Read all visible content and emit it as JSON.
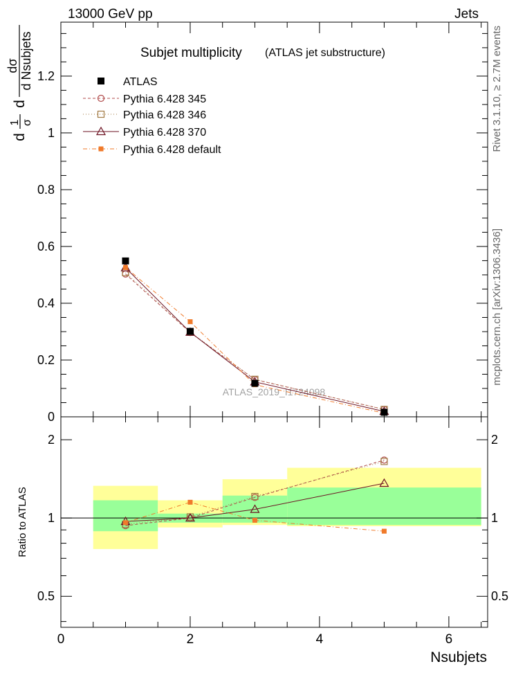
{
  "header": {
    "energy_label": "13000 GeV pp",
    "process_label": "Jets",
    "title": "Subjet multiplicity",
    "subtitle": "(ATLAS jet substructure)",
    "side_label_top": "Rivet 3.1.10, ≥ 2.7M events",
    "side_label_bottom": "mcplots.cern.ch [arXiv:1306.3436]",
    "watermark": "ATLAS_2019_I1724098"
  },
  "axes": {
    "ylabel_parts": {
      "frac1_num": "1",
      "frac1_den": "σ",
      "frac2_num": "dσ",
      "frac2_den": "d Nsubjets",
      "prefix": "d",
      "mid": "d"
    },
    "ratio_ylabel": "Ratio to ATLAS",
    "xlabel": "Nsubjets",
    "main_yticks": [
      "0",
      "0.2",
      "0.4",
      "0.6",
      "0.8",
      "1",
      "1.2"
    ],
    "ratio_yticks": [
      "0.5",
      "1",
      "2"
    ],
    "xticks": [
      "0",
      "2",
      "4",
      "6"
    ]
  },
  "legend": {
    "items": [
      {
        "label": "ATLAS"
      },
      {
        "label": "Pythia 6.428 345"
      },
      {
        "label": "Pythia 6.428 346"
      },
      {
        "label": "Pythia 6.428 370"
      },
      {
        "label": "Pythia 6.428 default"
      }
    ]
  },
  "chart_data": {
    "type": "line",
    "title": "Subjet multiplicity (ATLAS jet substructure)",
    "xlabel": "Nsubjets",
    "ylabel": "1/σ dσ/d Nsubjets",
    "xlim": [
      0,
      6.6
    ],
    "ylim": [
      0,
      1.39
    ],
    "x": [
      1,
      2,
      3,
      5
    ],
    "reference": {
      "name": "ATLAS",
      "values": [
        0.549,
        0.301,
        0.118,
        0.016
      ],
      "bins": [
        [
          0.5,
          1.5
        ],
        [
          1.5,
          2.5
        ],
        [
          2.5,
          3.5
        ],
        [
          3.5,
          6.5
        ]
      ],
      "ratio_band_inner": [
        [
          0.89,
          1.17
        ],
        [
          0.96,
          1.04
        ],
        [
          0.96,
          1.22
        ],
        [
          0.94,
          1.31
        ]
      ],
      "ratio_band_outer": [
        [
          0.76,
          1.33
        ],
        [
          0.92,
          1.17
        ],
        [
          0.94,
          1.41
        ],
        [
          0.93,
          1.56
        ]
      ]
    },
    "series": [
      {
        "name": "Pythia 6.428 345",
        "values": [
          0.503,
          0.297,
          0.131,
          0.026
        ],
        "ratio": [
          0.935,
          1.0,
          1.2,
          1.67
        ],
        "color": "#b04a4a",
        "marker": "circle",
        "dash": "4,3"
      },
      {
        "name": "Pythia 6.428 346",
        "values": [
          0.508,
          0.298,
          0.132,
          0.026
        ],
        "ratio": [
          0.945,
          1.01,
          1.21,
          1.65
        ],
        "color": "#a07840",
        "marker": "square",
        "dash": "1,3"
      },
      {
        "name": "Pythia 6.428 370",
        "values": [
          0.525,
          0.298,
          0.123,
          0.019
        ],
        "ratio": [
          0.97,
          1.0,
          1.08,
          1.36
        ],
        "color": "#6b1020",
        "marker": "triangle",
        "dash": ""
      },
      {
        "name": "Pythia 6.428 default",
        "values": [
          0.526,
          0.335,
          0.113,
          0.013
        ],
        "ratio": [
          0.96,
          1.15,
          0.98,
          0.89
        ],
        "color": "#f07a2a",
        "marker": "fsquare",
        "dash": "6,3,1,3"
      }
    ],
    "ratio_ylim": [
      0.38,
      2.45
    ],
    "ratio_scale": "log",
    "colors": {
      "band_inner": "#99ff99",
      "band_outer": "#ffff99",
      "reference": "#000000"
    }
  }
}
